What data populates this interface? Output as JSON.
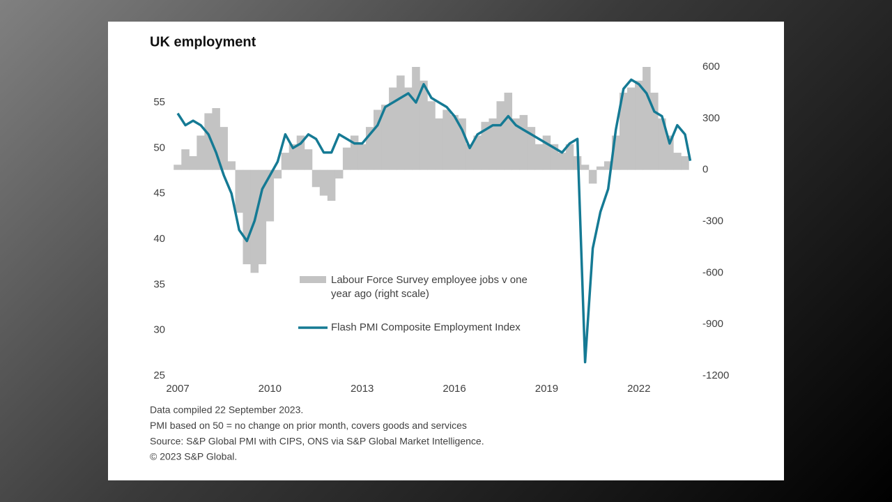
{
  "chart_data": {
    "type": "line_bar_dual",
    "title": "UK employment",
    "notes": [
      "Data compiled 22 September 2023.",
      "PMI based on 50 = no change on prior month, covers goods and services",
      "Source: S&P Global PMI with CIPS, ONS via S&P Global Market Intelligence.",
      "© 2023 S&P Global."
    ],
    "x": [
      2007.0,
      2007.25,
      2007.5,
      2007.75,
      2008.0,
      2008.25,
      2008.5,
      2008.75,
      2009.0,
      2009.25,
      2009.5,
      2009.75,
      2010.0,
      2010.25,
      2010.5,
      2010.75,
      2011.0,
      2011.25,
      2011.5,
      2011.75,
      2012.0,
      2012.25,
      2012.5,
      2012.75,
      2013.0,
      2013.25,
      2013.5,
      2013.75,
      2014.0,
      2014.25,
      2014.5,
      2014.75,
      2015.0,
      2015.25,
      2015.5,
      2015.75,
      2016.0,
      2016.25,
      2016.5,
      2016.75,
      2017.0,
      2017.25,
      2017.5,
      2017.75,
      2018.0,
      2018.25,
      2018.5,
      2018.75,
      2019.0,
      2019.25,
      2019.5,
      2019.75,
      2020.0,
      2020.25,
      2020.5,
      2020.75,
      2021.0,
      2021.25,
      2021.5,
      2021.75,
      2022.0,
      2022.25,
      2022.5,
      2022.75,
      2023.0,
      2023.25,
      2023.5,
      2023.67
    ],
    "series": [
      {
        "name": "Labour Force Survey employee jobs v one year ago (right scale)",
        "kind": "bar",
        "axis": "y2",
        "color": "#c3c3c3",
        "values": [
          30,
          120,
          80,
          200,
          330,
          360,
          250,
          50,
          -250,
          -550,
          -600,
          -550,
          -300,
          -50,
          100,
          150,
          200,
          120,
          -100,
          -150,
          -180,
          -50,
          130,
          200,
          150,
          250,
          350,
          380,
          480,
          550,
          480,
          600,
          520,
          400,
          300,
          350,
          320,
          300,
          150,
          200,
          280,
          300,
          400,
          450,
          300,
          320,
          250,
          150,
          200,
          150,
          100,
          150,
          80,
          30,
          -80,
          20,
          50,
          200,
          450,
          480,
          520,
          600,
          450,
          300,
          200,
          100,
          80,
          null
        ]
      },
      {
        "name": "Flash PMI Composite Employment Index",
        "kind": "line",
        "axis": "y",
        "color": "#157a94",
        "values": [
          53.8,
          52.5,
          53.0,
          52.5,
          51.5,
          49.5,
          47,
          45,
          41,
          39.8,
          42,
          45.5,
          47,
          48.5,
          51.5,
          50,
          50.5,
          51.5,
          51,
          49.5,
          49.5,
          51.5,
          51,
          50.5,
          50.5,
          51.5,
          52.5,
          54.5,
          55,
          55.5,
          56,
          55,
          57,
          55.5,
          55,
          54.5,
          53.5,
          52,
          50,
          51.5,
          52,
          52.5,
          52.5,
          53.5,
          52.5,
          52,
          51.5,
          51,
          50.5,
          50,
          49.5,
          50.5,
          51,
          26.5,
          39,
          43,
          45.5,
          52,
          56.5,
          57.5,
          57,
          56,
          54,
          53.5,
          50.5,
          52.5,
          51.5,
          48.6
        ]
      }
    ],
    "xlim": [
      2007,
      2023.75
    ],
    "xticks": [
      2007,
      2010,
      2013,
      2016,
      2019,
      2022
    ],
    "ylim": [
      25,
      58.9
    ],
    "yticks": [
      25,
      30,
      35,
      40,
      45,
      50,
      55
    ],
    "y2lim": [
      -1200,
      600
    ],
    "y2ticks": [
      -1200,
      -900,
      -600,
      -300,
      0,
      300,
      600
    ]
  }
}
